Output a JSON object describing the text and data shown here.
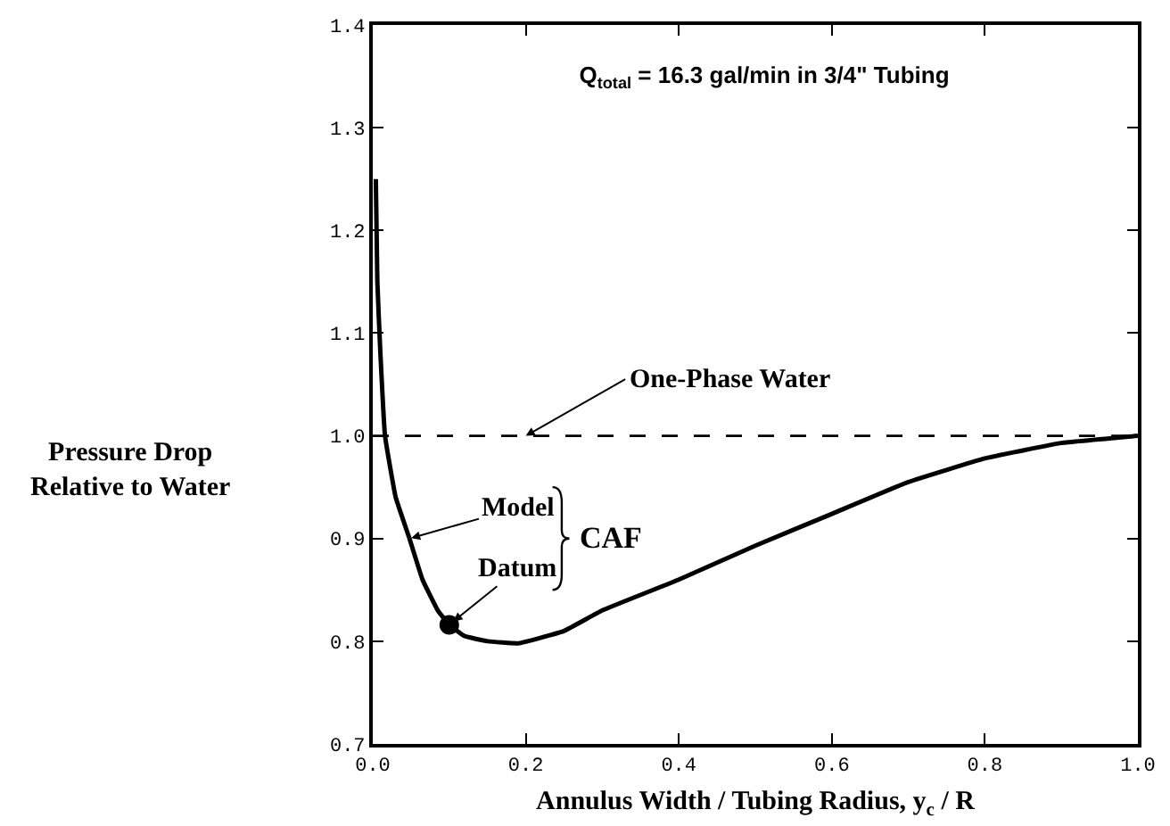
{
  "chart_data": {
    "type": "line",
    "title": "Q$_{total}$ = 16.3 gal/min in 3/4\" Tubing",
    "xlabel": "Annulus Width / Tubing Radius, y$_{c}$ / R",
    "ylabel": "Pressure Drop\nRelative to Water",
    "x": [
      0.004,
      0.006,
      0.01,
      0.016,
      0.03,
      0.048,
      0.065,
      0.085,
      0.1,
      0.12,
      0.15,
      0.19,
      0.25,
      0.3,
      0.4,
      0.5,
      0.6,
      0.7,
      0.8,
      0.9,
      1.0
    ],
    "series": [
      {
        "color": "#000000",
        "values": [
          1.25,
          1.15,
          1.08,
          1.0,
          0.94,
          0.9,
          0.86,
          0.83,
          0.816,
          0.805,
          0.8,
          0.798,
          0.81,
          0.83,
          0.86,
          0.893,
          0.924,
          0.955,
          0.978,
          0.993,
          1.0
        ]
      },
      {
        "type": "scatter",
        "color": "#000000",
        "marker": "circle",
        "x": [
          0.1
        ],
        "values": [
          0.816
        ]
      }
    ],
    "annotations": [
      {
        "text": "Model",
        "x": 0.048,
        "y": 0.9
      },
      {
        "text": "Datum",
        "x": 0.1,
        "y": 0.816
      },
      "CAF"
    ],
    "ref_lines": [
      {
        "axis": "y",
        "value": 1.0,
        "label": "One-Phase Water",
        "line_style": "dashed",
        "color": "#000000"
      }
    ],
    "xlim": [
      0,
      1.0
    ],
    "xticks": [
      {
        "value": 0,
        "label": "0.0"
      },
      {
        "value": 0.2,
        "label": "0.2"
      },
      {
        "value": 0.4,
        "label": "0.4"
      },
      {
        "value": 0.6,
        "label": "0.6"
      },
      {
        "value": 0.8,
        "label": "0.8"
      },
      {
        "value": 1.0,
        "label": "1.0"
      }
    ],
    "ylim": [
      0.7,
      1.4
    ],
    "yticks": [
      {
        "value": 0.7,
        "label": "0.7"
      },
      {
        "value": 0.8,
        "label": "0.8"
      },
      {
        "value": 0.9,
        "label": "0.9"
      },
      {
        "value": 1.0,
        "label": "1.0"
      },
      {
        "value": 1.1,
        "label": "1.1"
      },
      {
        "value": 1.2,
        "label": "1.2"
      },
      {
        "value": 1.3,
        "label": "1.3"
      },
      {
        "value": 1.4,
        "label": "1.4"
      }
    ],
    "grid": false,
    "legend": false
  }
}
